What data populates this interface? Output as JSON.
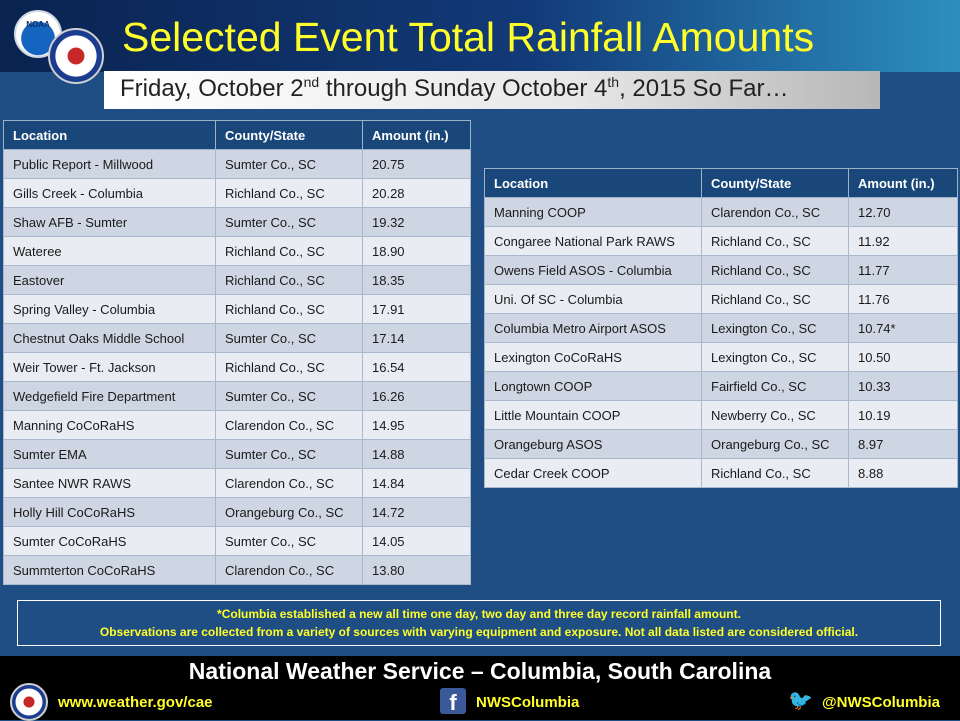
{
  "header": {
    "title": "Selected Event Total Rainfall Amounts",
    "subtitle_prefix": "Friday, October 2",
    "subtitle_sup1": "nd",
    "subtitle_mid": " through Sunday October 4",
    "subtitle_sup2": "th",
    "subtitle_suffix": ", 2015 So Far…",
    "logo_noaa_text": "NOAA"
  },
  "table1": {
    "columns": [
      "Location",
      "County/State",
      "Amount (in.)"
    ],
    "rows": [
      [
        "Public Report - Millwood",
        "Sumter Co., SC",
        "20.75"
      ],
      [
        "Gills Creek - Columbia",
        "Richland Co., SC",
        "20.28"
      ],
      [
        "Shaw AFB - Sumter",
        "Sumter Co., SC",
        "19.32"
      ],
      [
        "Wateree",
        "Richland Co., SC",
        "18.90"
      ],
      [
        "Eastover",
        "Richland Co., SC",
        "18.35"
      ],
      [
        "Spring Valley - Columbia",
        "Richland Co., SC",
        "17.91"
      ],
      [
        "Chestnut Oaks Middle School",
        "Sumter Co., SC",
        "17.14"
      ],
      [
        "Weir Tower - Ft. Jackson",
        "Richland Co., SC",
        "16.54"
      ],
      [
        "Wedgefield Fire Department",
        "Sumter Co., SC",
        "16.26"
      ],
      [
        "Manning CoCoRaHS",
        "Clarendon Co., SC",
        "14.95"
      ],
      [
        "Sumter EMA",
        "Sumter Co., SC",
        "14.88"
      ],
      [
        "Santee NWR RAWS",
        "Clarendon Co., SC",
        "14.84"
      ],
      [
        "Holly Hill CoCoRaHS",
        "Orangeburg Co., SC",
        "14.72"
      ],
      [
        "Sumter CoCoRaHS",
        "Sumter Co., SC",
        "14.05"
      ],
      [
        "Summterton  CoCoRaHS",
        "Clarendon Co., SC",
        "13.80"
      ]
    ]
  },
  "table2": {
    "columns": [
      "Location",
      "County/State",
      "Amount (in.)"
    ],
    "rows": [
      [
        "Manning COOP",
        "Clarendon Co., SC",
        "12.70"
      ],
      [
        "Congaree National Park RAWS",
        "Richland Co., SC",
        "11.92"
      ],
      [
        "Owens Field ASOS - Columbia",
        "Richland Co., SC",
        "11.77"
      ],
      [
        "Uni. Of SC - Columbia",
        "Richland Co., SC",
        "11.76"
      ],
      [
        "Columbia Metro Airport ASOS",
        "Lexington Co., SC",
        "10.74*"
      ],
      [
        "Lexington CoCoRaHS",
        "Lexington Co., SC",
        "10.50"
      ],
      [
        "Longtown COOP",
        "Fairfield Co., SC",
        "10.33"
      ],
      [
        "Little Mountain COOP",
        "Newberry Co., SC",
        "10.19"
      ],
      [
        "Orangeburg ASOS",
        "Orangeburg Co., SC",
        "8.97"
      ],
      [
        "Cedar Creek COOP",
        "Richland Co., SC",
        "8.88"
      ]
    ]
  },
  "notes": {
    "line1": "*Columbia established a new all time one day, two day and three day record rainfall amount.",
    "line2": "Observations are collected from a variety of sources with varying equipment and exposure. Not all data listed are considered official."
  },
  "footer": {
    "title": "National Weather Service – Columbia, South Carolina",
    "website": "www.weather.gov/cae",
    "facebook": "NWSColumbia",
    "twitter": "@NWSColumbia",
    "facebook_icon_glyph": "f",
    "twitter_icon_glyph": "🐦"
  },
  "colors": {
    "background": "#1f4e85",
    "title": "#ffff29",
    "table_header": "#1a477a",
    "row_dark": "#cfd6e3",
    "row_light": "#e9edf3"
  }
}
